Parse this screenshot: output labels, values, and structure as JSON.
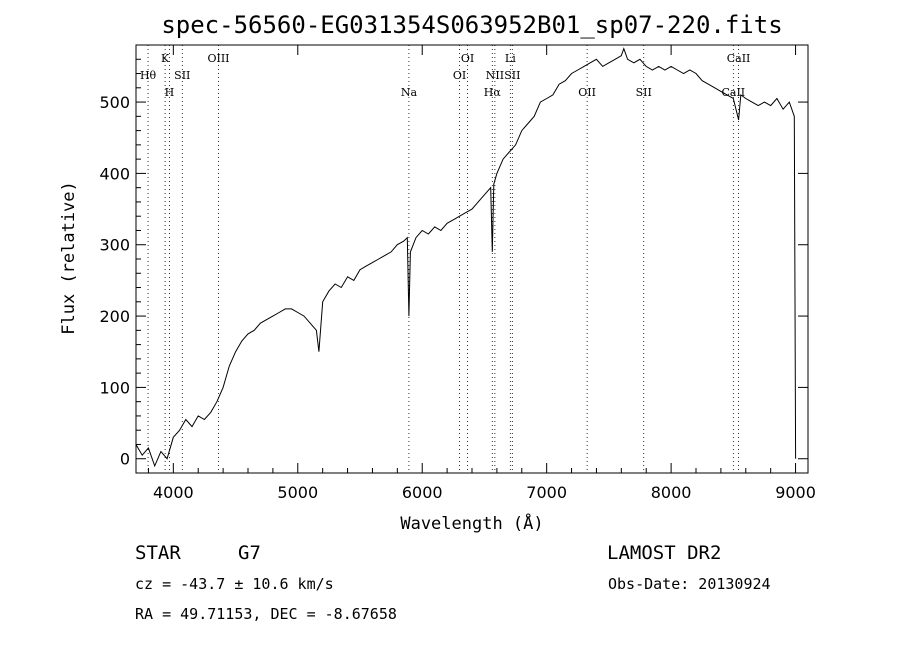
{
  "chart_data": {
    "type": "line",
    "title": "spec-56560-EG031354S063952B01_sp07-220.fits",
    "xlabel": "Wavelength (Å)",
    "ylabel": "Flux (relative)",
    "xlim": [
      3700,
      9100
    ],
    "ylim": [
      -20,
      580
    ],
    "xticks": [
      4000,
      5000,
      6000,
      7000,
      8000,
      9000
    ],
    "yticks": [
      0,
      100,
      200,
      300,
      400,
      500
    ],
    "grid": false,
    "series": [
      {
        "x": [
          3700,
          3750,
          3800,
          3850,
          3900,
          3950,
          4000,
          4050,
          4100,
          4150,
          4200,
          4250,
          4300,
          4350,
          4400,
          4450,
          4500,
          4550,
          4600,
          4650,
          4700,
          4750,
          4800,
          4850,
          4900,
          4950,
          5000,
          5050,
          5100,
          5150,
          5170,
          5200,
          5250,
          5300,
          5350,
          5400,
          5450,
          5500,
          5550,
          5600,
          5650,
          5700,
          5750,
          5800,
          5850,
          5880,
          5893,
          5905,
          5950,
          6000,
          6050,
          6100,
          6150,
          6200,
          6250,
          6300,
          6350,
          6400,
          6450,
          6500,
          6550,
          6563,
          6575,
          6600,
          6650,
          6700,
          6750,
          6800,
          6850,
          6900,
          6950,
          7000,
          7050,
          7100,
          7150,
          7200,
          7250,
          7300,
          7350,
          7400,
          7450,
          7500,
          7550,
          7600,
          7620,
          7650,
          7700,
          7750,
          7800,
          7850,
          7900,
          7950,
          8000,
          8050,
          8100,
          8150,
          8200,
          8250,
          8300,
          8350,
          8400,
          8450,
          8500,
          8542,
          8560,
          8600,
          8650,
          8700,
          8750,
          8800,
          8850,
          8900,
          8950,
          8990,
          9000
        ],
        "y": [
          20,
          5,
          15,
          -10,
          10,
          0,
          30,
          40,
          55,
          45,
          60,
          55,
          65,
          80,
          100,
          130,
          150,
          165,
          175,
          180,
          190,
          195,
          200,
          205,
          210,
          210,
          205,
          200,
          190,
          180,
          150,
          220,
          235,
          245,
          240,
          255,
          250,
          265,
          270,
          275,
          280,
          285,
          290,
          300,
          305,
          310,
          200,
          290,
          310,
          320,
          315,
          325,
          320,
          330,
          335,
          340,
          345,
          350,
          360,
          370,
          380,
          290,
          385,
          400,
          420,
          430,
          440,
          460,
          470,
          480,
          500,
          505,
          510,
          525,
          530,
          540,
          545,
          550,
          555,
          560,
          550,
          555,
          560,
          565,
          575,
          560,
          555,
          560,
          550,
          545,
          550,
          545,
          550,
          545,
          540,
          545,
          540,
          530,
          525,
          520,
          515,
          510,
          505,
          475,
          510,
          505,
          500,
          495,
          500,
          495,
          505,
          490,
          500,
          480,
          0
        ]
      }
    ],
    "spectral_lines": [
      {
        "label": "Hθ",
        "wavelength": 3797,
        "row": 2
      },
      {
        "label": "K",
        "wavelength": 3934,
        "row": 1
      },
      {
        "label": "H",
        "wavelength": 3969,
        "row": 3
      },
      {
        "label": "SII",
        "wavelength": 4072,
        "row": 2
      },
      {
        "label": "OIII",
        "wavelength": 4363,
        "row": 1
      },
      {
        "label": "Na",
        "wavelength": 5893,
        "row": 3
      },
      {
        "label": "OI",
        "wavelength": 6300,
        "row": 2
      },
      {
        "label": "OI",
        "wavelength": 6364,
        "row": 1
      },
      {
        "label": "Hα",
        "wavelength": 6563,
        "row": 3
      },
      {
        "label": "NII",
        "wavelength": 6584,
        "row": 2
      },
      {
        "label": "Li",
        "wavelength": 6708,
        "row": 1
      },
      {
        "label": "SII",
        "wavelength": 6724,
        "row": 2
      },
      {
        "label": "OII",
        "wavelength": 7325,
        "row": 3
      },
      {
        "label": "SII",
        "wavelength": 7780,
        "row": 3
      },
      {
        "label": "CaII",
        "wavelength": 8542,
        "row": 1
      },
      {
        "label": "CaII",
        "wavelength": 8500,
        "row": 3
      }
    ]
  },
  "info": {
    "class": "STAR",
    "subclass": "G7",
    "survey": "LAMOST DR2",
    "cz": "cz = -43.7 ± 10.6 km/s",
    "obs_date": "Obs-Date: 20130924",
    "radec": "RA =  49.71153, DEC =  -8.67658"
  }
}
